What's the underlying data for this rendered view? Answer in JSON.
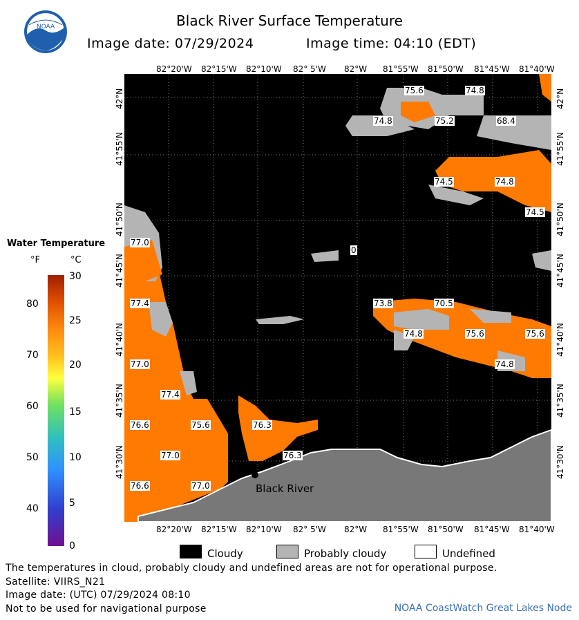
{
  "header": {
    "title": "Black River Surface Temperature",
    "image_date": "Image date: 07/29/2024",
    "image_time": "Image time: 04:10 (EDT)",
    "logo_text": "NOAA"
  },
  "map": {
    "lon_labels": [
      "82°20'W",
      "82°15'W",
      "82°10'W",
      "82° 5'W",
      "82°W",
      "81°55'W",
      "81°50'W",
      "81°45'W",
      "81°40'W"
    ],
    "lat_labels": [
      "42°N",
      "41°55'N",
      "41°50'N",
      "41°45'N",
      "41°40'N",
      "41°35'N",
      "41°30'N"
    ],
    "place_label": "Black River",
    "temp_labels": [
      "75.6",
      "74.8",
      "74.8",
      "75.2",
      "68.4",
      "74.5",
      "74.8",
      "74.5",
      "0",
      "73.8",
      "70.5",
      "74.8",
      "75.6",
      "75.6",
      "74.8",
      "77.0",
      "77.4",
      "77.0",
      "77.4",
      "76.6",
      "75.6",
      "76.3",
      "77.0",
      "76.3",
      "76.6",
      "77.0"
    ]
  },
  "legend": {
    "title": "Water Temperature",
    "unit_f": "°F",
    "unit_c": "°C",
    "ticks_f": [
      "80",
      "70",
      "60",
      "50",
      "40"
    ],
    "ticks_c": [
      "30",
      "25",
      "20",
      "15",
      "10",
      "5",
      "0"
    ]
  },
  "key": {
    "cloudy": "Cloudy",
    "probably_cloudy": "Probably cloudy",
    "undefined": "Undefined",
    "colors": {
      "cloudy": "#000000",
      "probably_cloudy": "#b4b4b4",
      "undefined": "#ffffff",
      "land": "#787878",
      "water_warm": "#ff7a00"
    }
  },
  "footer": {
    "line1": "The temperatures in cloud, probably cloudy and undefined areas are not for operational purpose.",
    "line2": "Satellite: VIIRS_N21",
    "line3": "Image date: (UTC) 07/29/2024  08:10",
    "line4": "Not to be used for navigational purpose",
    "credit": "NOAA CoastWatch Great Lakes Node"
  }
}
